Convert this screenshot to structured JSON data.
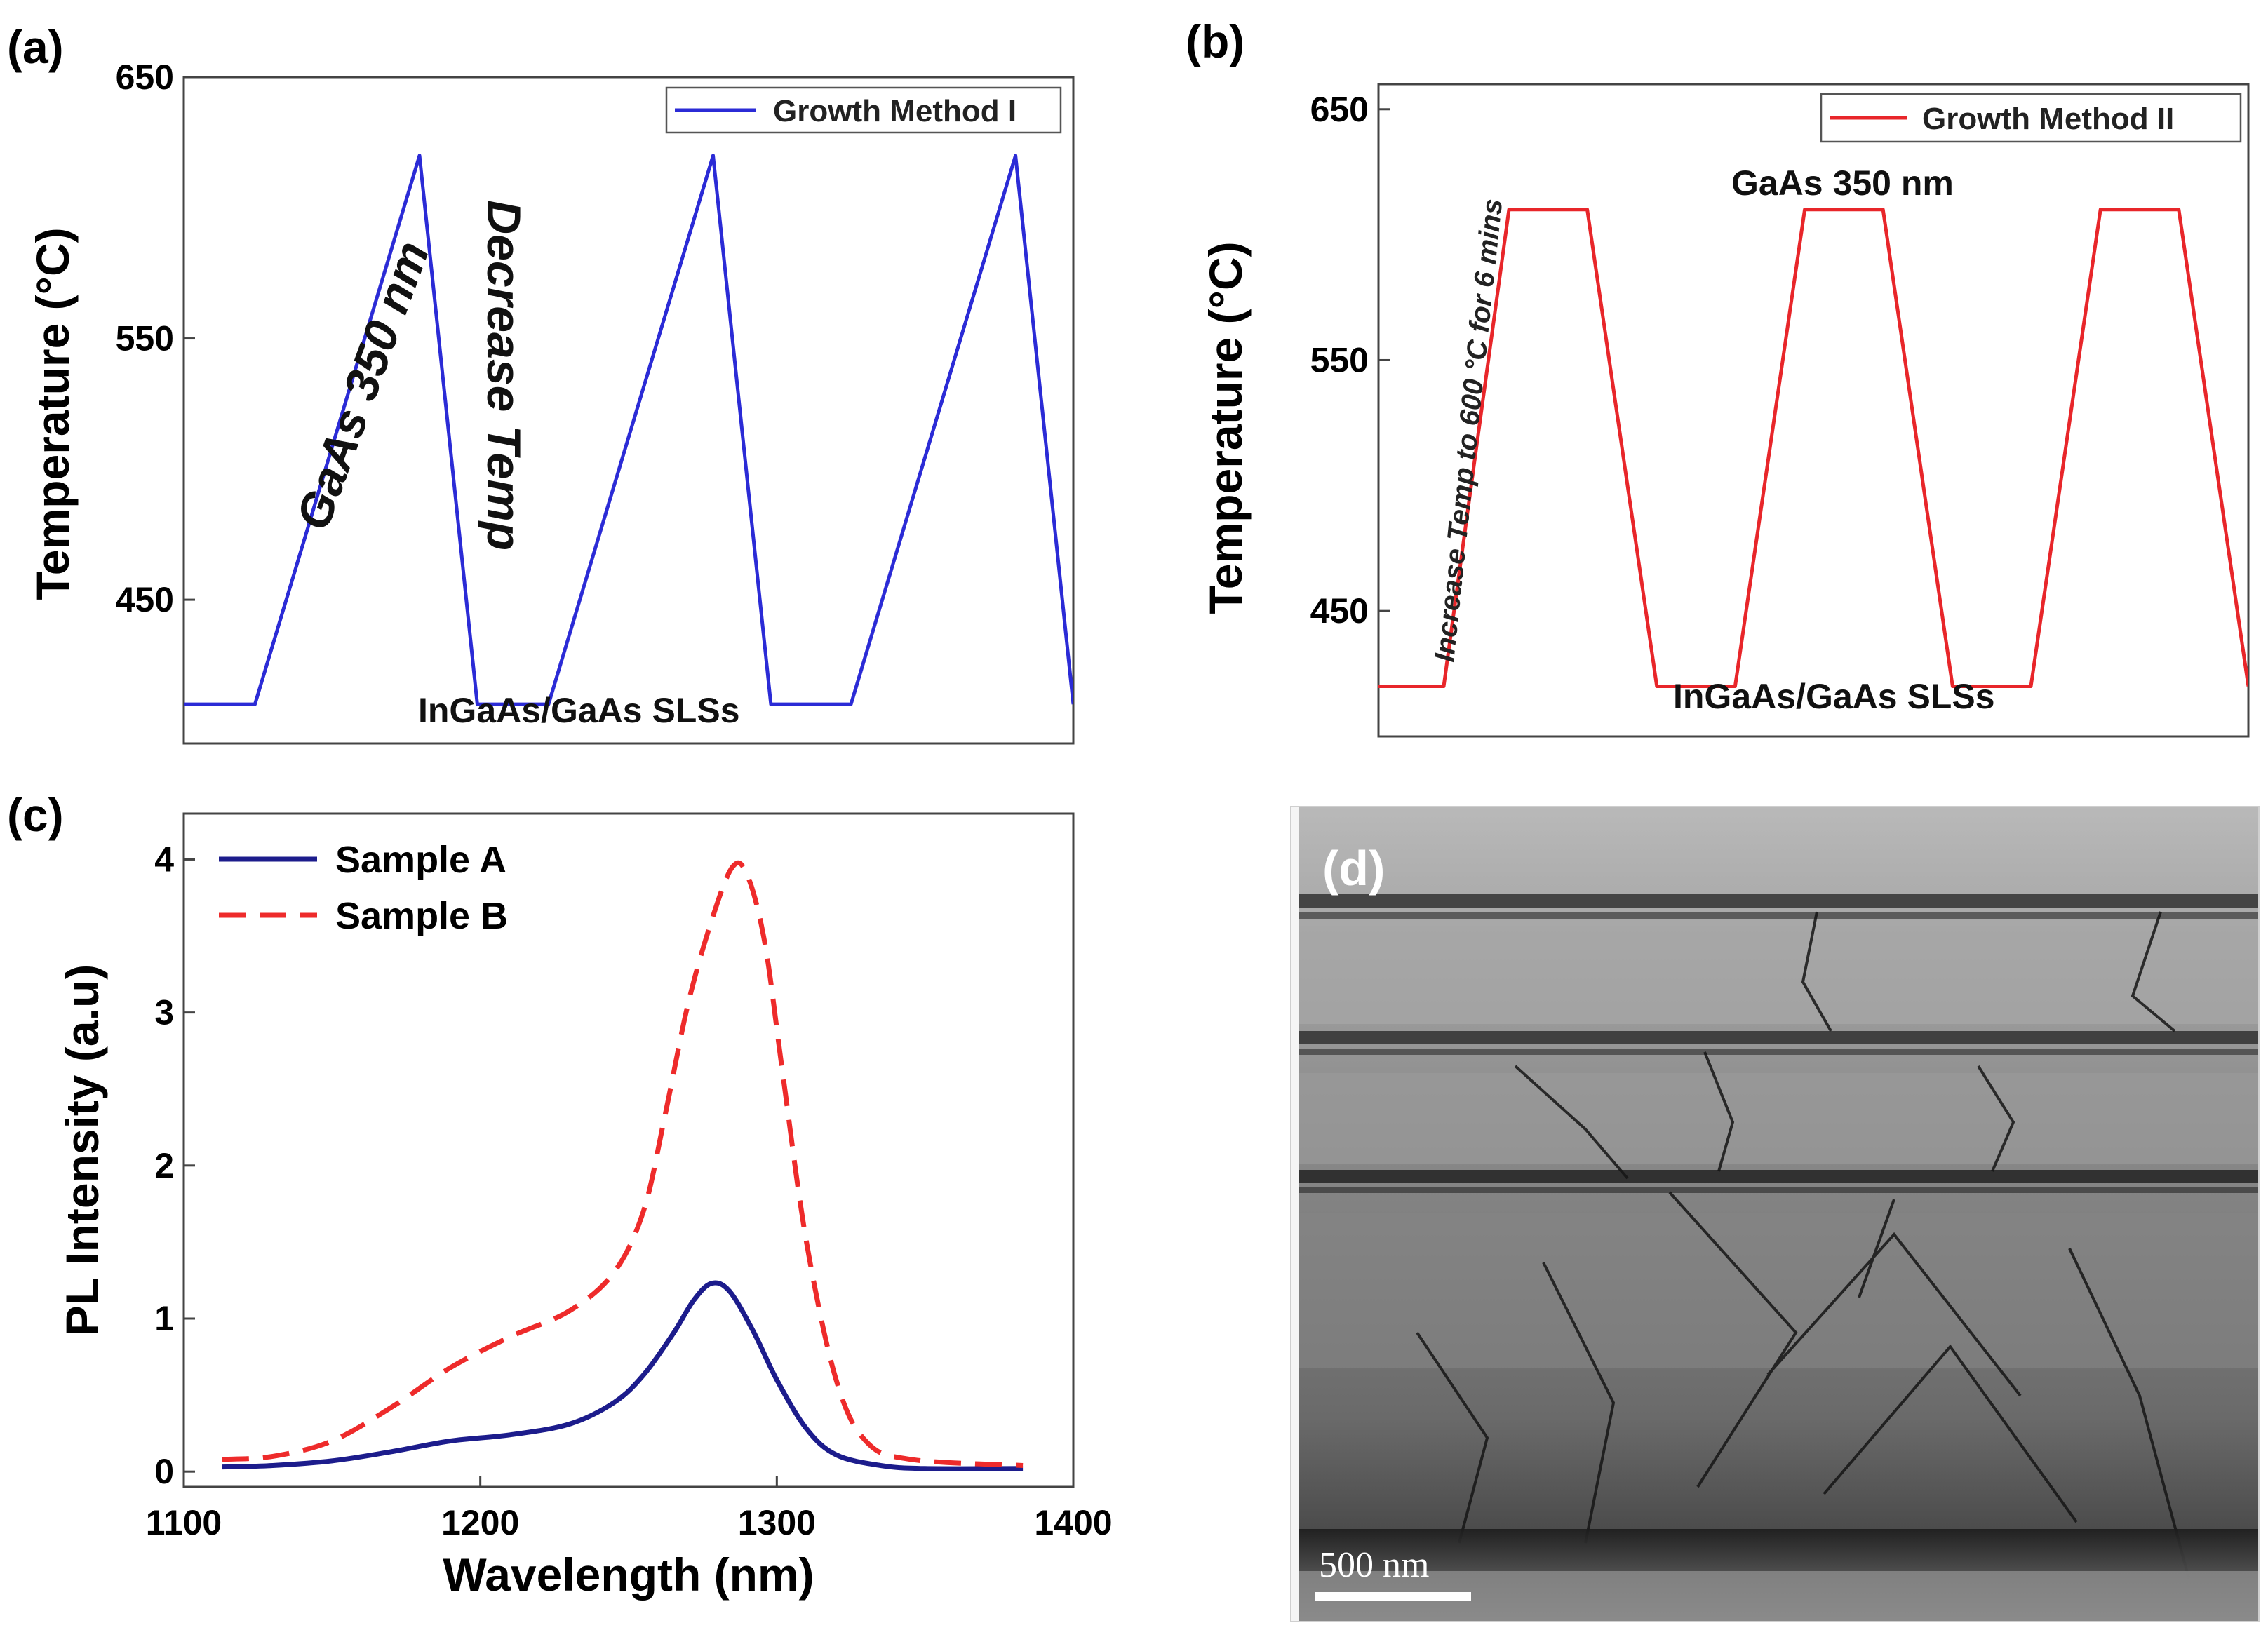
{
  "chart_data": [
    {
      "panel": "(a)",
      "type": "line",
      "title": "",
      "xlabel": "",
      "ylabel": "Temperature (°C)",
      "ylim": [
        395,
        650
      ],
      "yticks": [
        450,
        550,
        650
      ],
      "xlim": [
        0,
        100
      ],
      "series": [
        {
          "name": "Growth Method I",
          "color": "#2b2bd6",
          "x": [
            0,
            8,
            26.5,
            33,
            41,
            59.5,
            66,
            75,
            93.5,
            100
          ],
          "y": [
            410,
            410,
            620,
            410,
            410,
            620,
            410,
            410,
            620,
            410
          ]
        }
      ],
      "annotations": [
        "GaAs 350 nm",
        "Decrease Temp",
        "InGaAs/GaAs SLSs"
      ]
    },
    {
      "panel": "(b)",
      "type": "line",
      "title": "",
      "xlabel": "",
      "ylabel": "Temperature (°C)",
      "ylim": [
        400,
        660
      ],
      "yticks": [
        450,
        550,
        650
      ],
      "xlim": [
        0,
        100
      ],
      "series": [
        {
          "name": "Growth Method II",
          "color": "#e8262a",
          "x": [
            0,
            7.5,
            15,
            24,
            32,
            41,
            49,
            58,
            66,
            75,
            83,
            92,
            100
          ],
          "y": [
            420,
            420,
            610,
            610,
            420,
            420,
            610,
            610,
            420,
            420,
            610,
            610,
            420
          ]
        }
      ],
      "annotations": [
        "Increase Temp to 600 °C for 6 mins",
        "GaAs 350 nm",
        "InGaAs/GaAs SLSs"
      ]
    },
    {
      "panel": "(c)",
      "type": "line",
      "title": "",
      "xlabel": "Wavelength (nm)",
      "ylabel": "PL Intensity (a.u)",
      "xlim": [
        1100,
        1400
      ],
      "ylim": [
        -0.1,
        4.3
      ],
      "xticks": [
        1100,
        1200,
        1300,
        1400
      ],
      "yticks": [
        0,
        1,
        2,
        3,
        4
      ],
      "series": [
        {
          "name": "Sample A",
          "color": "#1c1c8c",
          "dash": "solid",
          "x": [
            1113,
            1130,
            1150,
            1170,
            1190,
            1210,
            1230,
            1245,
            1255,
            1265,
            1272,
            1278,
            1284,
            1292,
            1300,
            1310,
            1320,
            1335,
            1350,
            1383
          ],
          "y": [
            0.03,
            0.04,
            0.07,
            0.13,
            0.2,
            0.24,
            0.31,
            0.45,
            0.63,
            0.9,
            1.12,
            1.23,
            1.18,
            0.92,
            0.6,
            0.28,
            0.11,
            0.04,
            0.02,
            0.02
          ]
        },
        {
          "name": "Sample B",
          "color": "#ee2b2b",
          "dash": "dashed",
          "x": [
            1113,
            1130,
            1150,
            1170,
            1190,
            1210,
            1230,
            1245,
            1255,
            1262,
            1270,
            1278,
            1285,
            1290,
            1296,
            1302,
            1310,
            1320,
            1330,
            1345,
            1383
          ],
          "y": [
            0.08,
            0.1,
            0.2,
            0.42,
            0.68,
            0.88,
            1.05,
            1.3,
            1.7,
            2.3,
            3.05,
            3.6,
            3.95,
            3.9,
            3.45,
            2.6,
            1.5,
            0.6,
            0.2,
            0.08,
            0.04
          ]
        }
      ]
    }
  ],
  "panel_d": {
    "label": "(d)",
    "scale_bar_label": "500 nm"
  }
}
